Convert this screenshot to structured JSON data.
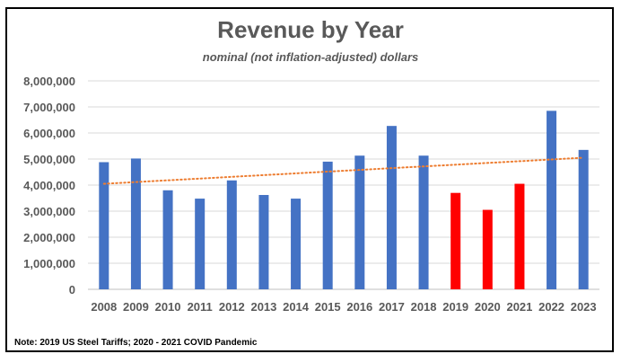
{
  "chart_data": {
    "type": "bar",
    "title": "Revenue by Year",
    "subtitle": "nominal (not inflation-adjusted) dollars",
    "categories": [
      "2008",
      "2009",
      "2010",
      "2011",
      "2012",
      "2013",
      "2014",
      "2015",
      "2016",
      "2017",
      "2018",
      "2019",
      "2020",
      "2021",
      "2022",
      "2023"
    ],
    "values": [
      4880000,
      5020000,
      3800000,
      3480000,
      4180000,
      3620000,
      3480000,
      4900000,
      5130000,
      6270000,
      5130000,
      3700000,
      3050000,
      4050000,
      6850000,
      5350000
    ],
    "bar_colors": [
      "#4472c4",
      "#4472c4",
      "#4472c4",
      "#4472c4",
      "#4472c4",
      "#4472c4",
      "#4472c4",
      "#4472c4",
      "#4472c4",
      "#4472c4",
      "#4472c4",
      "#ff0000",
      "#ff0000",
      "#ff0000",
      "#4472c4",
      "#4472c4"
    ],
    "ylim": [
      0,
      8000000
    ],
    "yticks": [
      0,
      1000000,
      2000000,
      3000000,
      4000000,
      5000000,
      6000000,
      7000000,
      8000000
    ],
    "ytick_labels": [
      "0",
      "1,000,000",
      "2,000,000",
      "3,000,000",
      "4,000,000",
      "5,000,000",
      "6,000,000",
      "7,000,000",
      "8,000,000"
    ],
    "trendline": {
      "type": "linear",
      "start": 4050000,
      "end": 5050000,
      "color": "#ed7d31",
      "style": "dotted"
    },
    "grid": true,
    "legend": "none",
    "xlabel": "",
    "ylabel": ""
  },
  "note": "Note: 2019 US Steel Tariffs; 2020 - 2021 COVID Pandemic"
}
